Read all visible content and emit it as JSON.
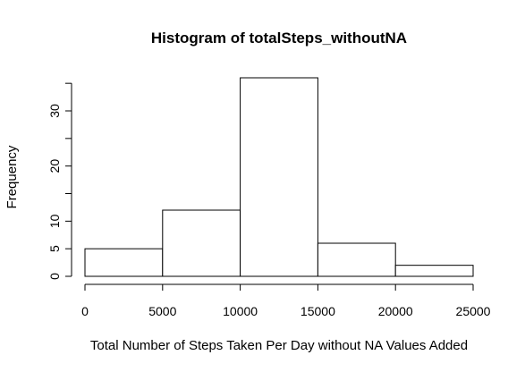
{
  "chart_data": {
    "type": "bar",
    "title": "Histogram of totalSteps_withoutNA",
    "xlabel": "Total Number of Steps Taken Per Day without NA Values Added",
    "ylabel": "Frequency",
    "bins": [
      {
        "start": 0,
        "end": 5000,
        "count": 5
      },
      {
        "start": 5000,
        "end": 10000,
        "count": 12
      },
      {
        "start": 10000,
        "end": 15000,
        "count": 36
      },
      {
        "start": 15000,
        "end": 20000,
        "count": 6
      },
      {
        "start": 20000,
        "end": 25000,
        "count": 2
      }
    ],
    "x_ticks": [
      "0",
      "5000",
      "10000",
      "15000",
      "20000",
      "25000"
    ],
    "y_ticks": [
      "0",
      "5",
      "10",
      "20",
      "30"
    ],
    "y_minor_ticks": [
      15,
      25,
      35
    ],
    "xlim": [
      0,
      25000
    ],
    "ylim": [
      0,
      36
    ],
    "grid": false,
    "bar_fill": "#ffffff",
    "bar_stroke": "#000000"
  }
}
